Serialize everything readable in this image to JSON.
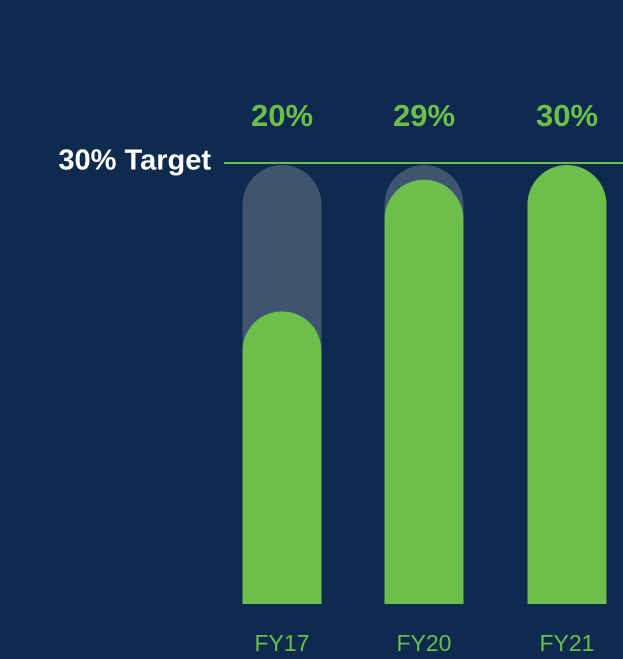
{
  "chart_data": {
    "type": "bar",
    "categories": [
      "FY17",
      "FY20",
      "FY21"
    ],
    "values": [
      20,
      29,
      30
    ],
    "value_labels": [
      "20%",
      "29%",
      "30%"
    ],
    "color": "#6cbf4a",
    "track_color": "#41546f",
    "ylim": [
      0,
      30
    ],
    "target": {
      "value": 30,
      "label": "30% Target"
    }
  }
}
